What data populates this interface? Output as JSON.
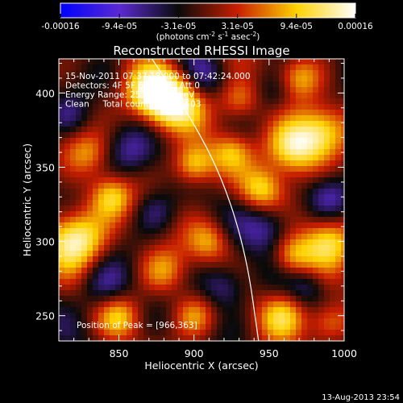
{
  "chart_data": {
    "type": "heatmap",
    "title": "Reconstructed RHESSI Image",
    "xlabel": "Heliocentric X (arcsec)",
    "ylabel": "Heliocentric Y (arcsec)",
    "xlim": [
      810,
      1000
    ],
    "ylim": [
      233,
      423
    ],
    "x_ticks": [
      "850",
      "900",
      "950",
      "1000"
    ],
    "y_ticks": [
      "250",
      "300",
      "350",
      "400"
    ],
    "colorbar": {
      "tick_labels": [
        "-0.00016",
        "-9.4e-05",
        "-3.1e-05",
        "3.1e-05",
        "9.4e-05",
        "0.00016"
      ],
      "unit_label_parts": [
        "(photons cm",
        "-2",
        " s",
        "-1",
        " asec",
        "-2",
        ")"
      ],
      "colors": [
        "#0000ff",
        "#5a2ad2",
        "#0a0a0a",
        "#c81e00",
        "#ffd200",
        "#ffffff"
      ]
    },
    "annotations": [
      "15-Nov-2011 07:37:18.000 to 07:42:24.000",
      "Detectors: 4F 5F 6F 7F 8F, Att 0",
      "Energy Range: 25.0 - 50.0 keV",
      "Clean     Total counts: 9.46E+03"
    ],
    "peak_label": "Position of Peak = [966,363]",
    "peak": [
      966,
      363
    ],
    "limb_curve": [
      [
        872,
        423
      ],
      [
        900,
        380
      ],
      [
        920,
        340
      ],
      [
        935,
        290
      ],
      [
        943,
        233
      ]
    ],
    "blobs": [
      {
        "x": 885,
        "y": 395,
        "v": 1.0,
        "s": 14
      },
      {
        "x": 870,
        "y": 400,
        "v": 0.7,
        "s": 12
      },
      {
        "x": 900,
        "y": 352,
        "v": 0.8,
        "s": 10
      },
      {
        "x": 965,
        "y": 363,
        "v": 1.0,
        "s": 13
      },
      {
        "x": 985,
        "y": 375,
        "v": 0.6,
        "s": 12
      },
      {
        "x": 822,
        "y": 302,
        "v": 1.0,
        "s": 14
      },
      {
        "x": 845,
        "y": 330,
        "v": 0.6,
        "s": 10
      },
      {
        "x": 930,
        "y": 395,
        "v": 0.6,
        "s": 10
      },
      {
        "x": 945,
        "y": 335,
        "v": 0.6,
        "s": 10
      },
      {
        "x": 990,
        "y": 300,
        "v": 0.7,
        "s": 12
      },
      {
        "x": 965,
        "y": 290,
        "v": 0.6,
        "s": 10
      },
      {
        "x": 910,
        "y": 300,
        "v": 0.5,
        "s": 10
      },
      {
        "x": 880,
        "y": 280,
        "v": 0.5,
        "s": 11
      },
      {
        "x": 900,
        "y": 250,
        "v": 0.5,
        "s": 10
      },
      {
        "x": 960,
        "y": 250,
        "v": 0.6,
        "s": 11
      },
      {
        "x": 850,
        "y": 250,
        "v": 0.5,
        "s": 10
      },
      {
        "x": 990,
        "y": 245,
        "v": 0.6,
        "s": 10
      },
      {
        "x": 970,
        "y": 410,
        "v": 0.5,
        "s": 10
      },
      {
        "x": 830,
        "y": 360,
        "v": 0.4,
        "s": 10
      },
      {
        "x": 925,
        "y": 360,
        "v": 0.4,
        "s": 9
      },
      {
        "x": 860,
        "y": 360,
        "v": -0.4,
        "s": 12
      },
      {
        "x": 840,
        "y": 270,
        "v": -0.4,
        "s": 12
      },
      {
        "x": 950,
        "y": 310,
        "v": -0.5,
        "s": 12
      },
      {
        "x": 920,
        "y": 270,
        "v": -0.5,
        "s": 11
      },
      {
        "x": 990,
        "y": 330,
        "v": -0.35,
        "s": 10
      },
      {
        "x": 905,
        "y": 410,
        "v": -0.35,
        "s": 10
      },
      {
        "x": 955,
        "y": 400,
        "v": -0.3,
        "s": 10
      },
      {
        "x": 875,
        "y": 320,
        "v": -0.3,
        "s": 10
      },
      {
        "x": 975,
        "y": 270,
        "v": -0.3,
        "s": 9
      },
      {
        "x": 815,
        "y": 385,
        "v": -0.3,
        "s": 10
      }
    ]
  },
  "footer": {
    "timestamp": "13-Aug-2013 23:54"
  }
}
